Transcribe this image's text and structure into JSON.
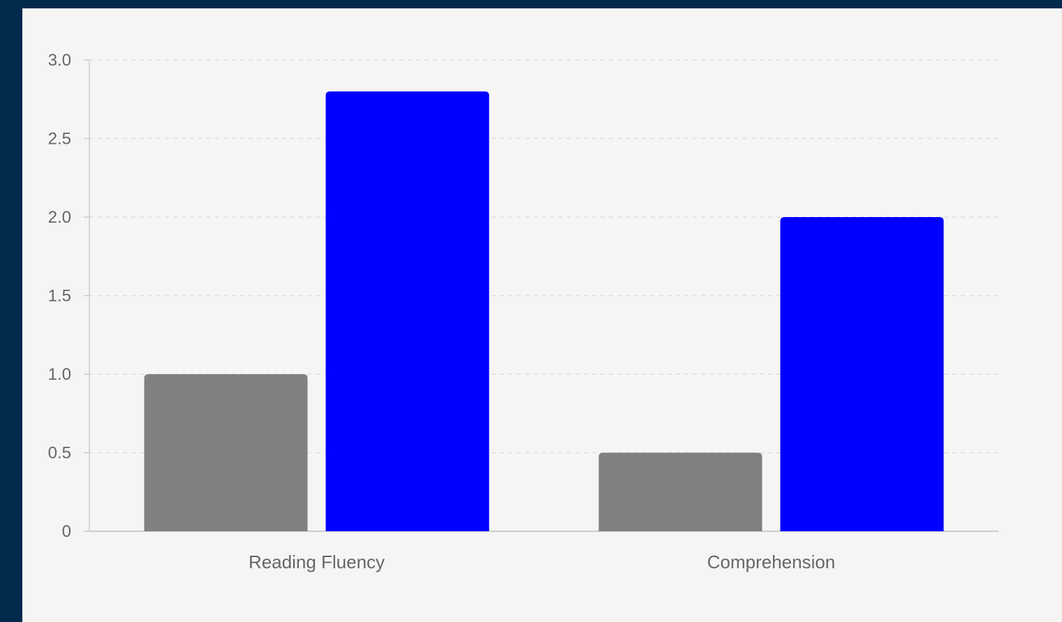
{
  "colors": {
    "page_background": "#022a4d",
    "panel_background": "#f5f5f4",
    "grid": "#dddddd",
    "axis": "#cccccc",
    "text": "#666666"
  },
  "chart_data": {
    "type": "bar",
    "title": "",
    "xlabel": "",
    "ylabel": "",
    "categories": [
      "Reading Fluency",
      "Comprehension"
    ],
    "series": [
      {
        "color": "#808080",
        "values": [
          1.0,
          0.5
        ]
      },
      {
        "color": "#0000ff",
        "values": [
          2.8,
          2.0
        ]
      }
    ],
    "ylim": [
      0,
      3
    ],
    "yticks": [
      0,
      0.5,
      1,
      1.5,
      2,
      2.5,
      3
    ],
    "ytick_labels": [
      "0",
      "0.5",
      "1.0",
      "1.5",
      "2.0",
      "2.5",
      "3.0"
    ],
    "grid": true,
    "legend": "none"
  }
}
